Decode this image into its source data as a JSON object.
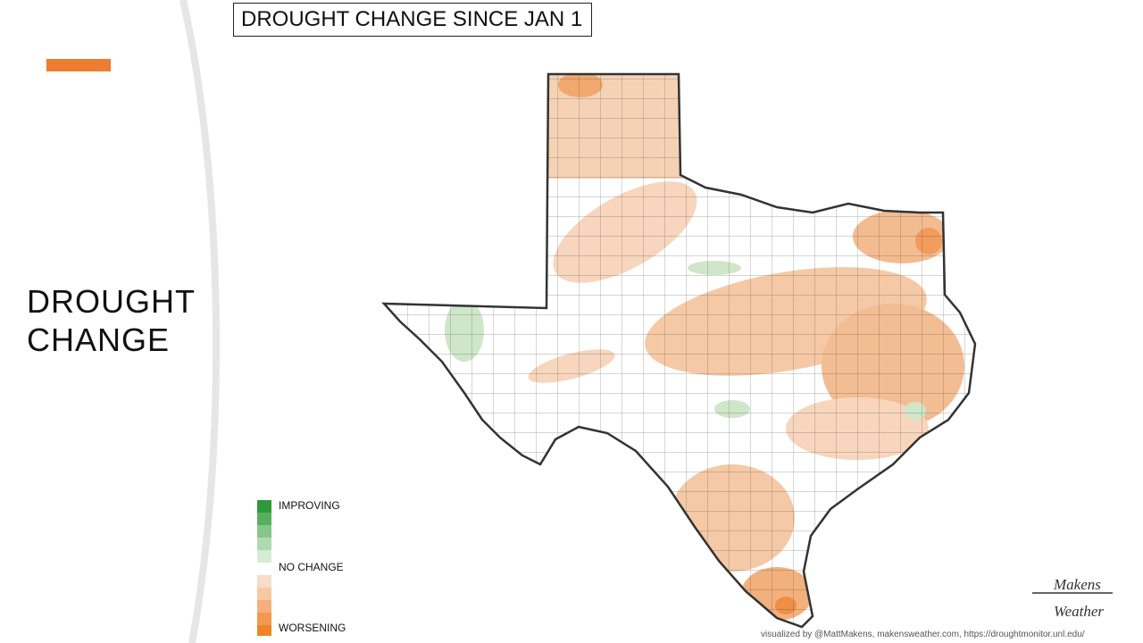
{
  "header": {
    "title": "DROUGHT CHANGE SINCE JAN 1"
  },
  "sidebar": {
    "title_lines": [
      "DROUGHT",
      "CHANGE"
    ]
  },
  "legend": {
    "improving": "IMPROVING",
    "no_change": "NO CHANGE",
    "worsening": "WORSENING"
  },
  "footer": {
    "credit": "visualized by @MattMakens, makensweather.com, https://droughtmonitor.unl.edu/"
  },
  "logo": {
    "line1": "Makens",
    "line2": "Weather"
  }
}
